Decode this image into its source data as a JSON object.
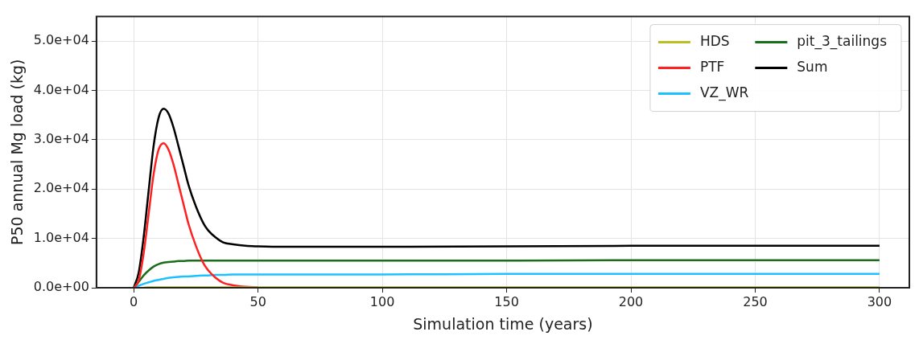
{
  "chart_data": {
    "type": "line",
    "xlabel": "Simulation time (years)",
    "ylabel": "P50 annual Mg load (kg)",
    "x": [
      0,
      2,
      4,
      6,
      8,
      10,
      12,
      14,
      16,
      18,
      20,
      22,
      25,
      28,
      30,
      33,
      36,
      40,
      45,
      50,
      60,
      80,
      100,
      150,
      200,
      250,
      300
    ],
    "series": [
      {
        "name": "HDS",
        "color": "#bcbd22",
        "values": [
          null,
          null,
          0,
          100,
          100,
          100,
          100,
          100,
          100,
          100,
          100,
          100,
          100,
          100,
          100,
          100,
          100,
          100,
          100,
          100,
          100,
          100,
          100,
          100,
          100,
          100,
          100
        ]
      },
      {
        "name": "PTF",
        "color": "#ff2020",
        "values": [
          0,
          1500,
          7000,
          15000,
          23000,
          28000,
          29300,
          28000,
          25000,
          21000,
          17000,
          13000,
          8500,
          5000,
          3500,
          2000,
          1000,
          500,
          200,
          100,
          null,
          null,
          null,
          null,
          null,
          null,
          null
        ]
      },
      {
        "name": "VZ_WR",
        "color": "#1ec0ff",
        "values": [
          0,
          400,
          800,
          1100,
          1400,
          1600,
          1800,
          2000,
          2100,
          2200,
          2300,
          2300,
          2400,
          2500,
          2500,
          2600,
          2600,
          2700,
          2700,
          2700,
          2700,
          2700,
          2700,
          2800,
          2800,
          2800,
          2800
        ]
      },
      {
        "name": "pit_3_tailings",
        "color": "#1a6e1a",
        "values": [
          0,
          1200,
          2500,
          3500,
          4300,
          4800,
          5100,
          5200,
          5300,
          5400,
          5400,
          5500,
          5500,
          5500,
          5500,
          5500,
          5500,
          5500,
          5500,
          5500,
          5500,
          5500,
          5500,
          5500,
          5600,
          5600,
          5600
        ]
      },
      {
        "name": "Sum",
        "color": "#000000",
        "values": [
          0,
          3100,
          10300,
          19700,
          28800,
          34500,
          36300,
          35300,
          32500,
          28700,
          24800,
          20900,
          16500,
          13100,
          11600,
          10200,
          9200,
          8800,
          8500,
          8400,
          8300,
          8300,
          8300,
          8400,
          8500,
          8500,
          8500
        ]
      }
    ],
    "xlim": [
      -15,
      312
    ],
    "xticks": [
      0,
      50,
      100,
      150,
      200,
      250,
      300
    ],
    "ylim": [
      0,
      55000
    ],
    "yticks": [
      {
        "value": 0,
        "label": "0.0e+00"
      },
      {
        "value": 10000,
        "label": "1.0e+04"
      },
      {
        "value": 20000,
        "label": "2.0e+04"
      },
      {
        "value": 30000,
        "label": "3.0e+04"
      },
      {
        "value": 40000,
        "label": "4.0e+04"
      },
      {
        "value": 50000,
        "label": "5.0e+04"
      }
    ],
    "grid": true,
    "legend": "top right",
    "marker": "none",
    "line_style": "solid"
  }
}
